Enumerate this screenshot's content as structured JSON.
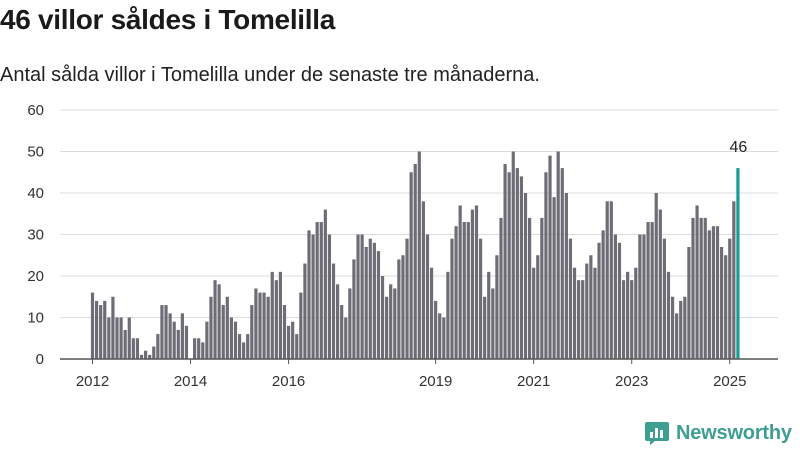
{
  "header": {
    "title": "46 villor såldes i Tomelilla",
    "subtitle": "Antal sålda villor i Tomelilla under de senaste tre månaderna."
  },
  "brand": {
    "name": "Newsworthy",
    "color": "#3e9e92"
  },
  "chart_data": {
    "type": "bar",
    "x_start": "2012-01",
    "frequency": "monthly",
    "y_ticks": [
      0,
      10,
      20,
      30,
      40,
      50,
      60
    ],
    "x_ticks": [
      {
        "label": "2012",
        "date": "2012-01"
      },
      {
        "label": "2014",
        "date": "2014-01"
      },
      {
        "label": "2016",
        "date": "2016-01"
      },
      {
        "label": "2019",
        "date": "2019-01"
      },
      {
        "label": "2021",
        "date": "2021-01"
      },
      {
        "label": "2023",
        "date": "2023-01"
      },
      {
        "label": "2025",
        "date": "2025-01"
      }
    ],
    "ylim": [
      0,
      60
    ],
    "grid": true,
    "bar_color": "#6e6d75",
    "highlight_color": "#1b9b96",
    "highlight_label": "46",
    "values": [
      16,
      14,
      13,
      14,
      10,
      15,
      10,
      10,
      7,
      10,
      5,
      5,
      1,
      2,
      1,
      3,
      6,
      13,
      13,
      11,
      9,
      7,
      11,
      8,
      null,
      5,
      5,
      4,
      9,
      15,
      19,
      18,
      13,
      15,
      10,
      9,
      6,
      4,
      6,
      13,
      17,
      16,
      16,
      15,
      21,
      19,
      21,
      13,
      8,
      9,
      6,
      16,
      23,
      31,
      30,
      33,
      33,
      36,
      30,
      23,
      18,
      13,
      10,
      17,
      24,
      30,
      30,
      27,
      29,
      28,
      26,
      20,
      15,
      18,
      17,
      24,
      25,
      29,
      45,
      47,
      50,
      38,
      30,
      22,
      14,
      11,
      10,
      21,
      29,
      32,
      37,
      33,
      33,
      36,
      37,
      29,
      15,
      21,
      17,
      25,
      34,
      47,
      45,
      50,
      46,
      44,
      40,
      34,
      22,
      25,
      34,
      45,
      49,
      39,
      50,
      46,
      40,
      29,
      22,
      19,
      19,
      23,
      25,
      22,
      28,
      31,
      38,
      38,
      30,
      28,
      19,
      21,
      19,
      22,
      30,
      30,
      33,
      33,
      40,
      36,
      29,
      21,
      15,
      11,
      14,
      15,
      27,
      34,
      37,
      34,
      34,
      31,
      32,
      32,
      27,
      25,
      29,
      38,
      46
    ]
  }
}
